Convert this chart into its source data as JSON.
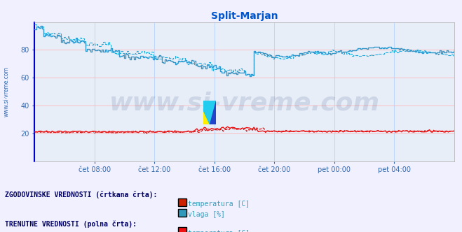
{
  "title": "Split-Marjan",
  "title_color": "#0055cc",
  "bg_color": "#f0f0ff",
  "plot_bg_color": "#e8eef8",
  "grid_color_h": "#ffaaaa",
  "grid_color_v": "#aaccff",
  "watermark": "www.si-vreme.com",
  "watermark_color": "#1a3a6e",
  "ylim": [
    0,
    100
  ],
  "yticks": [
    20,
    40,
    60,
    80
  ],
  "xtick_labels": [
    "čet 08:00",
    "čet 12:00",
    "čet 16:00",
    "čet 20:00",
    "pet 00:00",
    "pet 04:00"
  ],
  "hist_temp_color": "#cc0000",
  "hist_hum_color": "#22aadd",
  "curr_temp_color": "#ee1111",
  "curr_hum_color": "#3399cc",
  "left_label_color": "#3366aa",
  "spine_left_color": "#0000cc",
  "legend_title1": "ZGODOVINSKE VREDNOSTI (črtkana črta):",
  "legend_title2": "TRENUTNE VREDNOSTI (polna črta):",
  "legend_temp_hist_color": "#cc2200",
  "legend_hum_hist_color": "#3399bb",
  "legend_temp_curr_color": "#ee1111",
  "legend_hum_curr_color": "#44aacc"
}
